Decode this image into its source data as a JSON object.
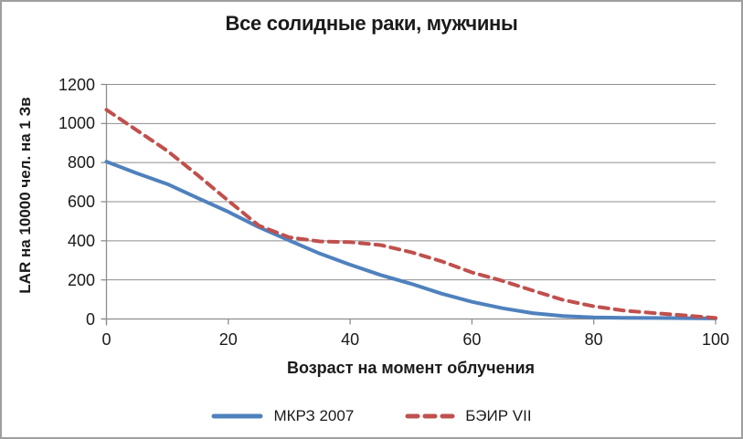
{
  "chart_data": {
    "type": "line",
    "title": "Все солидные раки, мужчины",
    "xlabel": "Возраст на момент облучения",
    "ylabel": "LAR на 10000 чел. на 1 Зв",
    "xlim": [
      0,
      100
    ],
    "ylim": [
      0,
      1200
    ],
    "xticks": [
      0,
      20,
      40,
      60,
      80,
      100
    ],
    "yticks": [
      0,
      200,
      400,
      600,
      800,
      1000,
      1200
    ],
    "xtick_labels": [
      "0",
      "20",
      "40",
      "60",
      "80",
      "100"
    ],
    "ytick_labels": [
      "0",
      "200",
      "400",
      "600",
      "800",
      "1000",
      "1200"
    ],
    "grid": "horizontal",
    "grid_color": "#8e8e8e",
    "axis_color": "#8e8e8e",
    "text_color": "#1a1a1a",
    "legend_position": "bottom",
    "x": [
      0,
      5,
      10,
      15,
      20,
      25,
      30,
      35,
      40,
      45,
      50,
      55,
      60,
      65,
      70,
      75,
      80,
      85,
      90,
      95,
      100
    ],
    "series": [
      {
        "name": "МКРЗ 2007",
        "color": "#4f81bd",
        "line_style": "solid",
        "values": [
          805,
          745,
          690,
          618,
          548,
          470,
          402,
          335,
          278,
          225,
          180,
          130,
          88,
          55,
          30,
          15,
          8,
          6,
          5,
          4,
          3
        ]
      },
      {
        "name": "БЭИР VII",
        "color": "#c0504d",
        "line_style": "dashed",
        "values": [
          1070,
          965,
          860,
          735,
          605,
          478,
          418,
          397,
          393,
          378,
          342,
          295,
          238,
          195,
          145,
          97,
          65,
          43,
          30,
          18,
          5
        ]
      }
    ]
  }
}
